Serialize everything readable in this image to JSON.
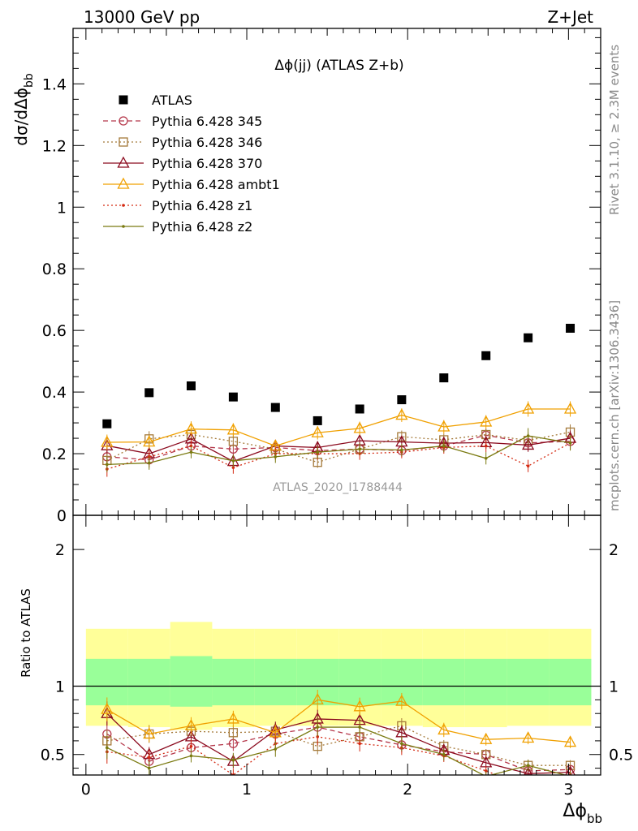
{
  "header": {
    "left": "13000 GeV pp",
    "right": "Z+Jet"
  },
  "side_text": {
    "rivet": "Rivet 3.1.10, ≥ 2.3M events",
    "mcplots": "mcplots.cern.ch [arXiv:1306.3436]"
  },
  "chart_data": [
    {
      "type": "scatter",
      "panel": "main",
      "title": "Δϕ(jj) (ATLAS Z+b)",
      "ylabel": "dσ/dΔϕ",
      "ylabel_sub": "bb",
      "watermark": "ATLAS_2020_I1788444",
      "xlim": [
        -0.08,
        3.2
      ],
      "ylim": [
        0,
        1.58
      ],
      "yticks": [
        0,
        0.2,
        0.4,
        0.6,
        0.8,
        1,
        1.2,
        1.4
      ],
      "ytick_labels": [
        "0",
        "0.2",
        "0.4",
        "0.6",
        "0.8",
        "1",
        "1.2",
        "1.4"
      ],
      "bin_edges": [
        0,
        0.262,
        0.524,
        0.785,
        1.047,
        1.309,
        1.571,
        1.833,
        2.094,
        2.356,
        2.618,
        2.88,
        3.1416
      ],
      "x": [
        0.131,
        0.393,
        0.654,
        0.916,
        1.178,
        1.44,
        1.702,
        1.963,
        2.225,
        2.487,
        2.749,
        3.011
      ],
      "legend_position": "top-left",
      "series": [
        {
          "name": "ATLAS",
          "color": "#000000",
          "marker": "square",
          "line": "none",
          "values": [
            0.297,
            0.398,
            0.42,
            0.384,
            0.35,
            0.307,
            0.345,
            0.375,
            0.446,
            0.518,
            0.576,
            0.607
          ]
        },
        {
          "name": "Pythia 6.428 345",
          "color": "#b5374a",
          "marker": "circle-open",
          "line": "dashed",
          "values": [
            0.19,
            0.18,
            0.225,
            0.215,
            0.22,
            0.21,
            0.215,
            0.21,
            0.225,
            0.26,
            0.235,
            0.24
          ],
          "errors": [
            0.03,
            0.025,
            0.02,
            0.02,
            0.02,
            0.02,
            0.02,
            0.02,
            0.02,
            0.02,
            0.025,
            0.025
          ]
        },
        {
          "name": "Pythia 6.428 346",
          "color": "#a57a3a",
          "marker": "square-open",
          "line": "dotted",
          "values": [
            0.178,
            0.248,
            0.262,
            0.24,
            0.215,
            0.172,
            0.215,
            0.255,
            0.245,
            0.262,
            0.243,
            0.27
          ],
          "errors": [
            0.025,
            0.025,
            0.02,
            0.02,
            0.02,
            0.018,
            0.02,
            0.02,
            0.02,
            0.02,
            0.025,
            0.025
          ]
        },
        {
          "name": "Pythia 6.428 370",
          "color": "#8b0a1e",
          "marker": "triangle-open",
          "line": "solid",
          "values": [
            0.226,
            0.2,
            0.248,
            0.175,
            0.225,
            0.22,
            0.242,
            0.238,
            0.234,
            0.236,
            0.228,
            0.25
          ],
          "errors": [
            0.025,
            0.022,
            0.02,
            0.02,
            0.02,
            0.02,
            0.02,
            0.02,
            0.02,
            0.02,
            0.022,
            0.025
          ]
        },
        {
          "name": "Pythia 6.428 ambt1",
          "color": "#f0a000",
          "marker": "triangle-open",
          "line": "solid",
          "values": [
            0.237,
            0.238,
            0.28,
            0.277,
            0.225,
            0.268,
            0.282,
            0.325,
            0.287,
            0.303,
            0.345,
            0.345
          ],
          "errors": [
            0.025,
            0.022,
            0.025,
            0.022,
            0.02,
            0.022,
            0.022,
            0.022,
            0.022,
            0.022,
            0.025,
            0.025
          ]
        },
        {
          "name": "Pythia 6.428 z1",
          "color": "#d42a12",
          "marker": "dot",
          "line": "dotted",
          "values": [
            0.15,
            0.19,
            0.225,
            0.155,
            0.2,
            0.2,
            0.2,
            0.205,
            0.22,
            0.225,
            0.16,
            0.235
          ],
          "errors": [
            0.025,
            0.022,
            0.02,
            0.02,
            0.02,
            0.02,
            0.02,
            0.02,
            0.02,
            0.02,
            0.02,
            0.022
          ]
        },
        {
          "name": "Pythia 6.428 z2",
          "color": "#7a7a10",
          "marker": "dot",
          "line": "solid",
          "values": [
            0.165,
            0.17,
            0.205,
            0.177,
            0.19,
            0.205,
            0.215,
            0.212,
            0.225,
            0.185,
            0.258,
            0.235
          ],
          "errors": [
            0.025,
            0.022,
            0.02,
            0.02,
            0.02,
            0.02,
            0.02,
            0.02,
            0.02,
            0.02,
            0.025,
            0.025
          ]
        }
      ]
    },
    {
      "type": "line",
      "panel": "ratio",
      "ylabel": "Ratio to ATLAS",
      "xlabel": "Δϕ",
      "xlabel_sub": "bb",
      "xlim": [
        -0.08,
        3.2
      ],
      "ylim": [
        0.35,
        2.25
      ],
      "xticks": [
        0,
        1,
        2,
        3
      ],
      "xtick_labels": [
        "0",
        "1",
        "2",
        "3"
      ],
      "yticks": [
        0.5,
        1,
        2
      ],
      "ytick_labels": [
        "0.5",
        "1",
        "2"
      ],
      "band_inner": {
        "color": "#99ff99",
        "lo": [
          0.86,
          0.86,
          0.85,
          0.86,
          0.86,
          0.86,
          0.86,
          0.86,
          0.86,
          0.86,
          0.86,
          0.86
        ],
        "hi": [
          1.2,
          1.2,
          1.22,
          1.2,
          1.2,
          1.2,
          1.2,
          1.2,
          1.2,
          1.2,
          1.2,
          1.2
        ]
      },
      "band_outer": {
        "color": "#ffff99",
        "lo": [
          0.71,
          0.7,
          0.68,
          0.7,
          0.71,
          0.71,
          0.71,
          0.71,
          0.7,
          0.7,
          0.71,
          0.71
        ],
        "hi": [
          1.42,
          1.42,
          1.47,
          1.42,
          1.42,
          1.42,
          1.42,
          1.42,
          1.42,
          1.42,
          1.42,
          1.42
        ]
      },
      "series": [
        {
          "name": "Pythia 6.428 345",
          "values": [
            0.65,
            0.45,
            0.55,
            0.58,
            0.65,
            0.7,
            0.63,
            0.57,
            0.52,
            0.5,
            0.38,
            0.39
          ]
        },
        {
          "name": "Pythia 6.428 346",
          "values": [
            0.6,
            0.65,
            0.67,
            0.66,
            0.67,
            0.56,
            0.63,
            0.71,
            0.56,
            0.5,
            0.42,
            0.42
          ]
        },
        {
          "name": "Pythia 6.428 370",
          "values": [
            0.8,
            0.5,
            0.63,
            0.45,
            0.68,
            0.76,
            0.75,
            0.66,
            0.53,
            0.44,
            0.36,
            0.37
          ]
        },
        {
          "name": "Pythia 6.428 ambt1",
          "values": [
            0.83,
            0.65,
            0.71,
            0.76,
            0.66,
            0.9,
            0.85,
            0.89,
            0.68,
            0.61,
            0.62,
            0.59
          ]
        },
        {
          "name": "Pythia 6.428 z1",
          "values": [
            0.52,
            0.48,
            0.56,
            0.35,
            0.58,
            0.63,
            0.58,
            0.55,
            0.49,
            0.38,
            0.26,
            0.35
          ]
        },
        {
          "name": "Pythia 6.428 z2",
          "values": [
            0.55,
            0.4,
            0.49,
            0.46,
            0.54,
            0.7,
            0.7,
            0.58,
            0.5,
            0.34,
            0.42,
            0.34
          ]
        }
      ]
    }
  ]
}
